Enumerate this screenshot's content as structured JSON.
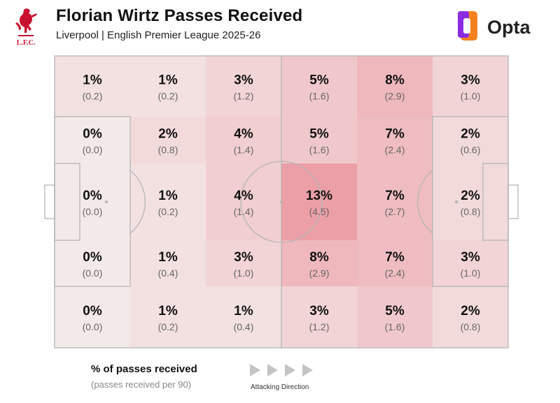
{
  "header": {
    "title": "Florian Wirtz Passes Received",
    "subtitle": "Liverpool | English Premier League 2025-26",
    "club_logo_text": "L.F.C.",
    "provider_name": "Opta"
  },
  "legend": {
    "title": "% of passes received",
    "subtitle": "(passes received per 90)",
    "direction_label": "Attacking Direction"
  },
  "colors": {
    "cell_base": "#f4e9e9",
    "cell_max": "#ec9fa6",
    "pitch_lines": "#b5b5b5",
    "club_red": "#c8102e",
    "opta_orange": "#f58220",
    "opta_purple": "#8a2be2"
  },
  "chart_data": {
    "type": "heatmap",
    "description_scale": "grid of pitch zones, attacking left to right",
    "columns": 6,
    "rows": 5,
    "percent": [
      [
        1,
        1,
        3,
        5,
        8,
        3
      ],
      [
        0,
        2,
        4,
        5,
        7,
        2
      ],
      [
        0,
        1,
        4,
        13,
        7,
        2
      ],
      [
        0,
        1,
        3,
        8,
        7,
        3
      ],
      [
        0,
        1,
        1,
        3,
        5,
        2
      ]
    ],
    "per90": [
      [
        0.2,
        0.2,
        1.2,
        1.6,
        2.9,
        1.0
      ],
      [
        0.0,
        0.8,
        1.4,
        1.6,
        2.4,
        0.6
      ],
      [
        0.0,
        0.2,
        1.4,
        4.5,
        2.7,
        0.8
      ],
      [
        0.0,
        0.4,
        1.0,
        2.9,
        2.4,
        1.0
      ],
      [
        0.0,
        0.2,
        0.4,
        1.2,
        1.6,
        0.8
      ]
    ],
    "percent_suffix": "%",
    "attacking_direction": "right"
  }
}
